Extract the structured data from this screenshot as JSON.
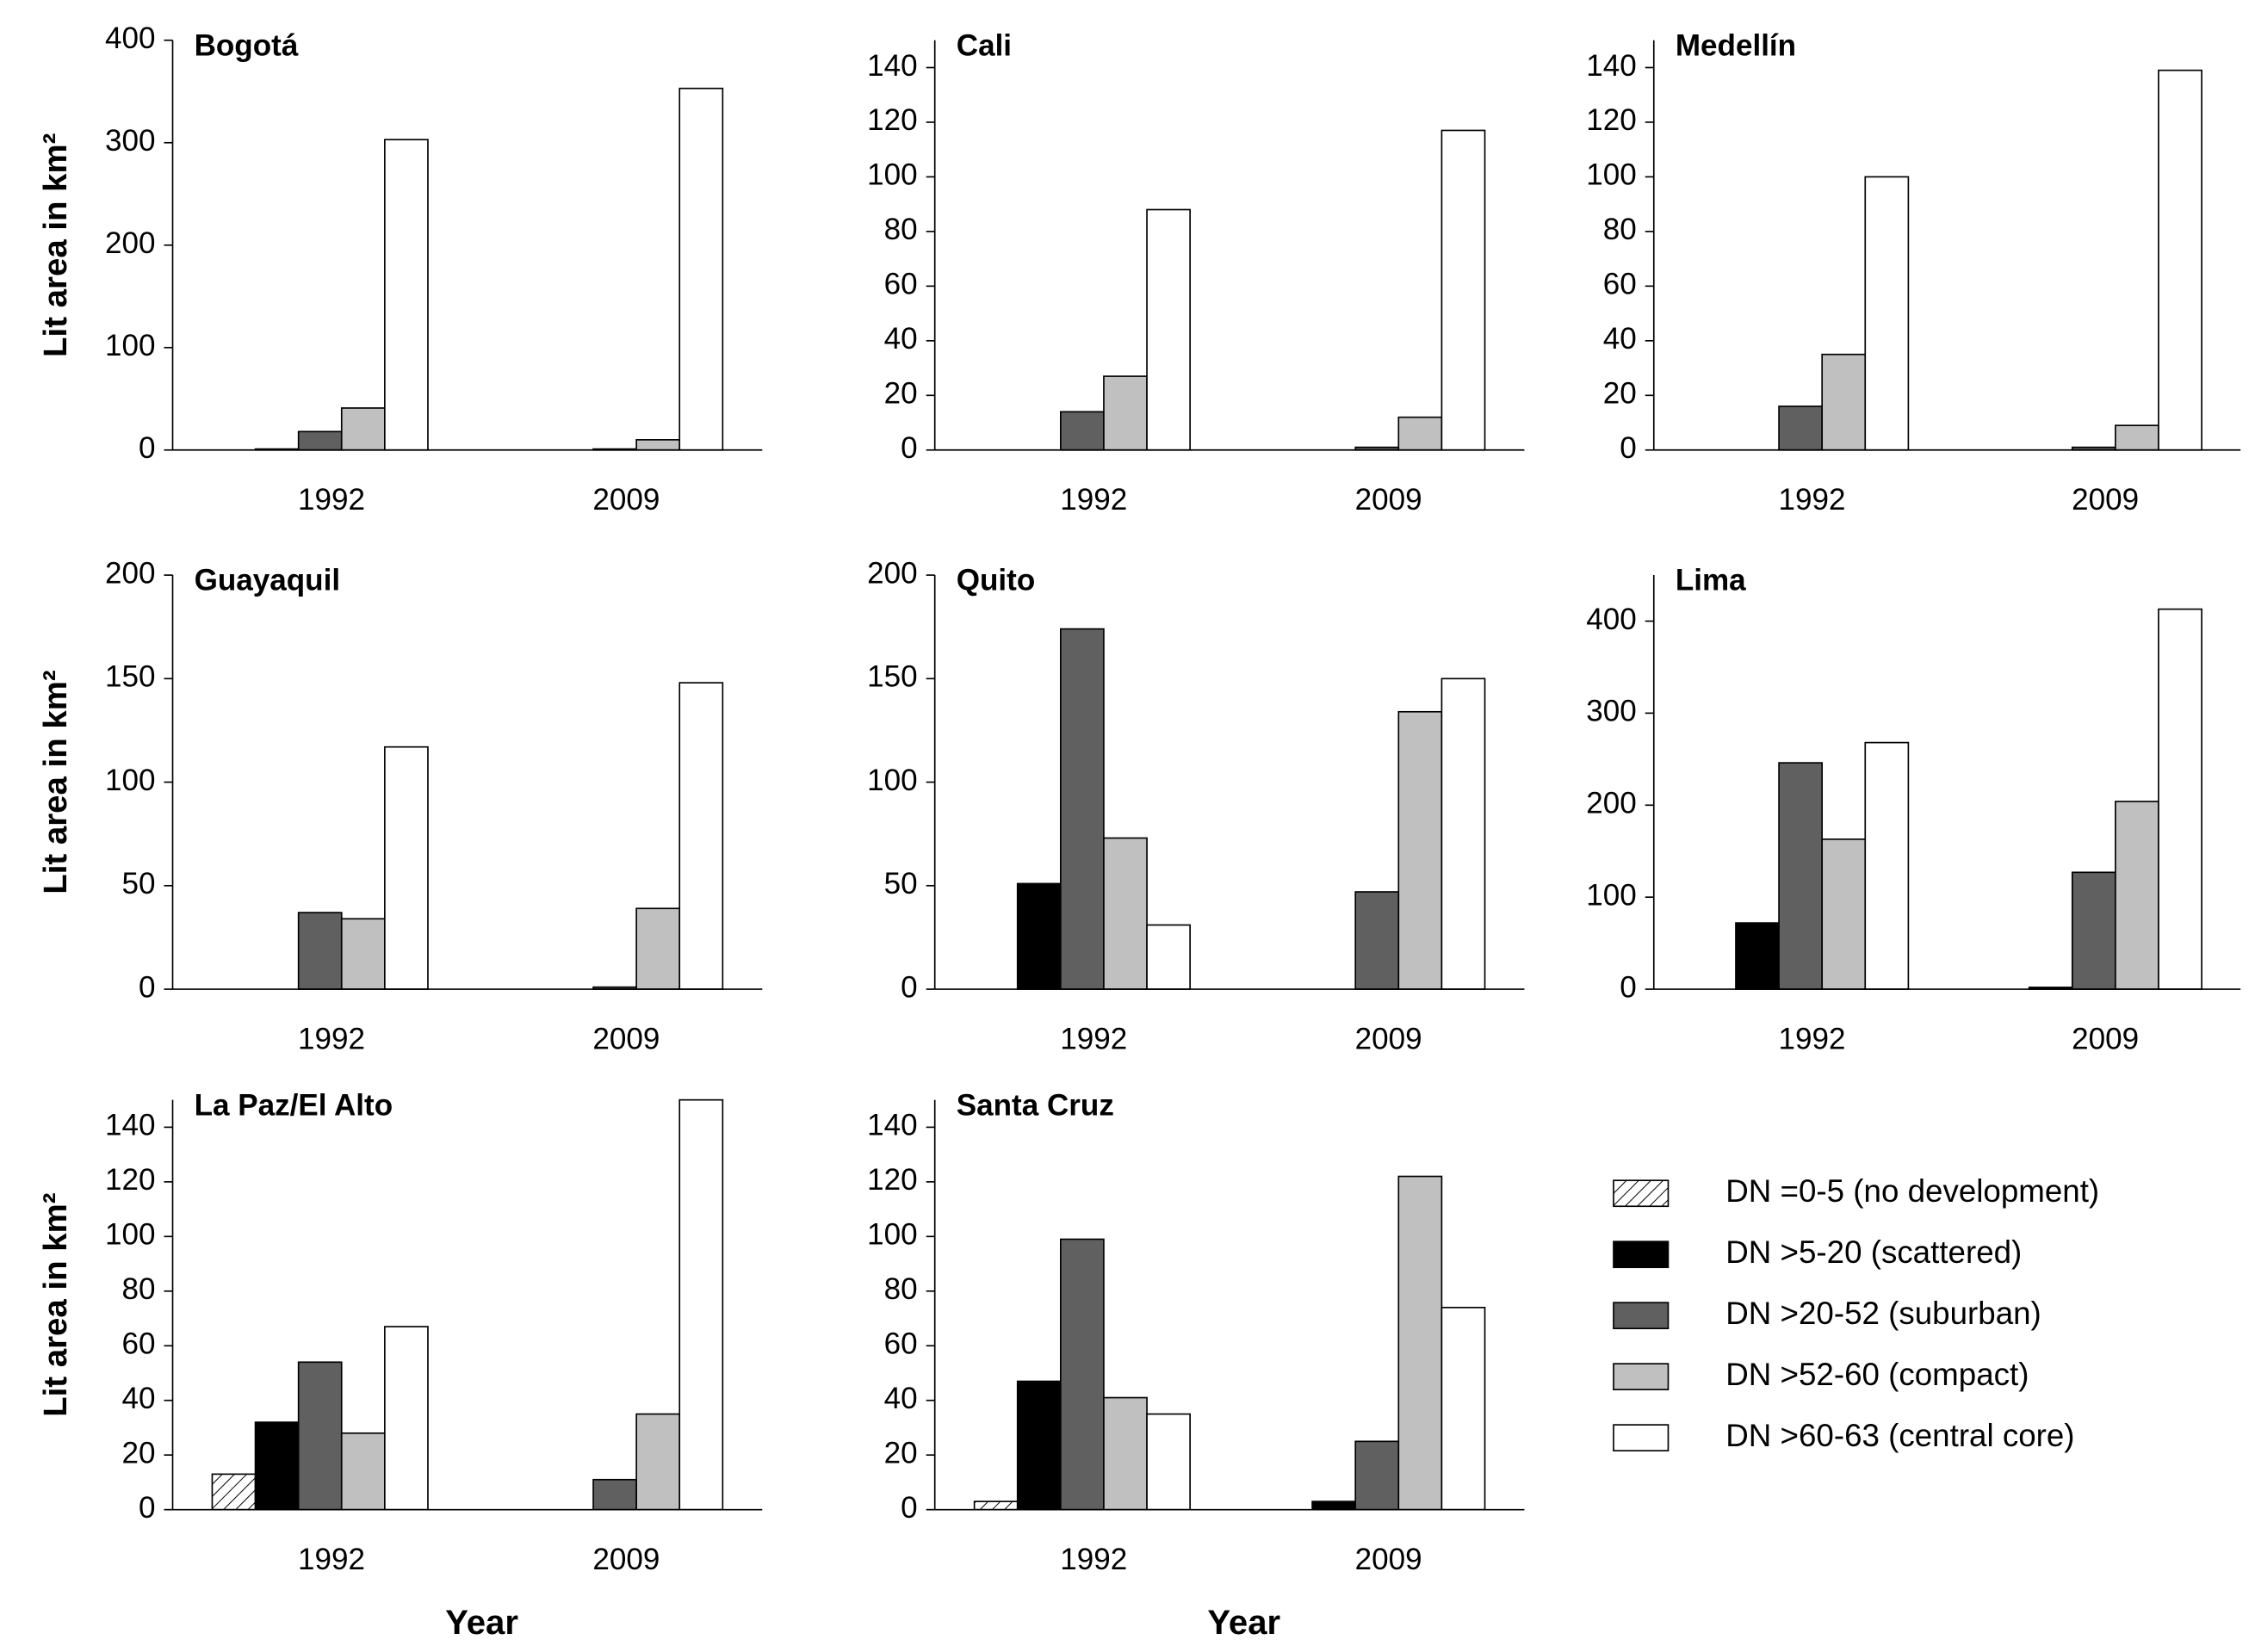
{
  "chart_data": [
    {
      "type": "bar",
      "title": "Bogotá",
      "y_label": "Lit area in km²",
      "categories": [
        "1992",
        "2009"
      ],
      "ylim": [
        0,
        400
      ],
      "yticks": [
        0,
        100,
        200,
        300,
        400
      ],
      "series": [
        {
          "name": "DN =0-5 (no development)",
          "color": "#ffffff",
          "hatch": true,
          "values": [
            0,
            0
          ]
        },
        {
          "name": "DN >5-20 (scattered)",
          "color": "#000000",
          "values": [
            1,
            0
          ]
        },
        {
          "name": "DN >20-52 (suburban)",
          "color": "#606060",
          "values": [
            18,
            1
          ]
        },
        {
          "name": "DN >52-60 (compact)",
          "color": "#c0c0c0",
          "values": [
            41,
            10
          ]
        },
        {
          "name": "DN >60-63 (central core)",
          "color": "#ffffff",
          "values": [
            303,
            353
          ]
        }
      ]
    },
    {
      "type": "bar",
      "title": "Cali",
      "categories": [
        "1992",
        "2009"
      ],
      "ylim": [
        0,
        150
      ],
      "yticks": [
        0,
        20,
        40,
        60,
        80,
        100,
        120,
        140
      ],
      "series": [
        {
          "name": "DN =0-5 (no development)",
          "color": "#ffffff",
          "hatch": true,
          "values": [
            0,
            0
          ]
        },
        {
          "name": "DN >5-20 (scattered)",
          "color": "#000000",
          "values": [
            0,
            0
          ]
        },
        {
          "name": "DN >20-52 (suburban)",
          "color": "#606060",
          "values": [
            14,
            1
          ]
        },
        {
          "name": "DN >52-60 (compact)",
          "color": "#c0c0c0",
          "values": [
            27,
            12
          ]
        },
        {
          "name": "DN >60-63 (central core)",
          "color": "#ffffff",
          "values": [
            88,
            117
          ]
        }
      ]
    },
    {
      "type": "bar",
      "title": "Medellín",
      "categories": [
        "1992",
        "2009"
      ],
      "ylim": [
        0,
        150
      ],
      "yticks": [
        0,
        20,
        40,
        60,
        80,
        100,
        120,
        140
      ],
      "series": [
        {
          "name": "DN =0-5 (no development)",
          "color": "#ffffff",
          "hatch": true,
          "values": [
            0,
            0
          ]
        },
        {
          "name": "DN >5-20 (scattered)",
          "color": "#000000",
          "values": [
            0,
            0
          ]
        },
        {
          "name": "DN >20-52 (suburban)",
          "color": "#606060",
          "values": [
            16,
            1
          ]
        },
        {
          "name": "DN >52-60 (compact)",
          "color": "#c0c0c0",
          "values": [
            35,
            9
          ]
        },
        {
          "name": "DN >60-63 (central core)",
          "color": "#ffffff",
          "values": [
            100,
            139
          ]
        }
      ]
    },
    {
      "type": "bar",
      "title": "Guayaquil",
      "y_label": "Lit area in km²",
      "categories": [
        "1992",
        "2009"
      ],
      "ylim": [
        0,
        200
      ],
      "yticks": [
        0,
        50,
        100,
        150,
        200
      ],
      "series": [
        {
          "name": "DN =0-5 (no development)",
          "color": "#ffffff",
          "hatch": true,
          "values": [
            0,
            0
          ]
        },
        {
          "name": "DN >5-20 (scattered)",
          "color": "#000000",
          "values": [
            0,
            0
          ]
        },
        {
          "name": "DN >20-52 (suburban)",
          "color": "#606060",
          "values": [
            37,
            1
          ]
        },
        {
          "name": "DN >52-60 (compact)",
          "color": "#c0c0c0",
          "values": [
            34,
            39
          ]
        },
        {
          "name": "DN >60-63 (central core)",
          "color": "#ffffff",
          "values": [
            117,
            148
          ]
        }
      ]
    },
    {
      "type": "bar",
      "title": "Quito",
      "categories": [
        "1992",
        "2009"
      ],
      "ylim": [
        0,
        200
      ],
      "yticks": [
        0,
        50,
        100,
        150,
        200
      ],
      "series": [
        {
          "name": "DN =0-5 (no development)",
          "color": "#ffffff",
          "hatch": true,
          "values": [
            0,
            0
          ]
        },
        {
          "name": "DN >5-20 (scattered)",
          "color": "#000000",
          "values": [
            51,
            0
          ]
        },
        {
          "name": "DN >20-52 (suburban)",
          "color": "#606060",
          "values": [
            174,
            47
          ]
        },
        {
          "name": "DN >52-60 (compact)",
          "color": "#c0c0c0",
          "values": [
            73,
            134
          ]
        },
        {
          "name": "DN >60-63 (central core)",
          "color": "#ffffff",
          "values": [
            31,
            150
          ]
        }
      ]
    },
    {
      "type": "bar",
      "title": "Lima",
      "categories": [
        "1992",
        "2009"
      ],
      "ylim": [
        0,
        450
      ],
      "yticks": [
        0,
        100,
        200,
        300,
        400
      ],
      "series": [
        {
          "name": "DN =0-5 (no development)",
          "color": "#ffffff",
          "hatch": true,
          "values": [
            0,
            0
          ]
        },
        {
          "name": "DN >5-20 (scattered)",
          "color": "#000000",
          "values": [
            72,
            2
          ]
        },
        {
          "name": "DN >20-52 (suburban)",
          "color": "#606060",
          "values": [
            246,
            127
          ]
        },
        {
          "name": "DN >52-60 (compact)",
          "color": "#c0c0c0",
          "values": [
            163,
            204
          ]
        },
        {
          "name": "DN >60-63 (central core)",
          "color": "#ffffff",
          "values": [
            268,
            413
          ]
        }
      ]
    },
    {
      "type": "bar",
      "title": "La Paz/El Alto",
      "y_label": "Lit area in km²",
      "x_label": "Year",
      "categories": [
        "1992",
        "2009"
      ],
      "ylim": [
        0,
        150
      ],
      "yticks": [
        0,
        20,
        40,
        60,
        80,
        100,
        120,
        140
      ],
      "series": [
        {
          "name": "DN =0-5 (no development)",
          "color": "#ffffff",
          "hatch": true,
          "values": [
            13,
            0
          ]
        },
        {
          "name": "DN >5-20 (scattered)",
          "color": "#000000",
          "values": [
            32,
            0
          ]
        },
        {
          "name": "DN >20-52 (suburban)",
          "color": "#606060",
          "values": [
            54,
            11
          ]
        },
        {
          "name": "DN >52-60 (compact)",
          "color": "#c0c0c0",
          "values": [
            28,
            35
          ]
        },
        {
          "name": "DN >60-63 (central core)",
          "color": "#ffffff",
          "values": [
            67,
            150
          ]
        }
      ]
    },
    {
      "type": "bar",
      "title": "Santa Cruz",
      "x_label": "Year",
      "categories": [
        "1992",
        "2009"
      ],
      "ylim": [
        0,
        150
      ],
      "yticks": [
        0,
        20,
        40,
        60,
        80,
        100,
        120,
        140
      ],
      "series": [
        {
          "name": "DN =0-5 (no development)",
          "color": "#ffffff",
          "hatch": true,
          "values": [
            3,
            0
          ]
        },
        {
          "name": "DN >5-20 (scattered)",
          "color": "#000000",
          "values": [
            47,
            3
          ]
        },
        {
          "name": "DN >20-52 (suburban)",
          "color": "#606060",
          "values": [
            99,
            25
          ]
        },
        {
          "name": "DN >52-60 (compact)",
          "color": "#c0c0c0",
          "values": [
            41,
            122
          ]
        },
        {
          "name": "DN >60-63 (central core)",
          "color": "#ffffff",
          "values": [
            35,
            74
          ]
        }
      ]
    }
  ]
}
